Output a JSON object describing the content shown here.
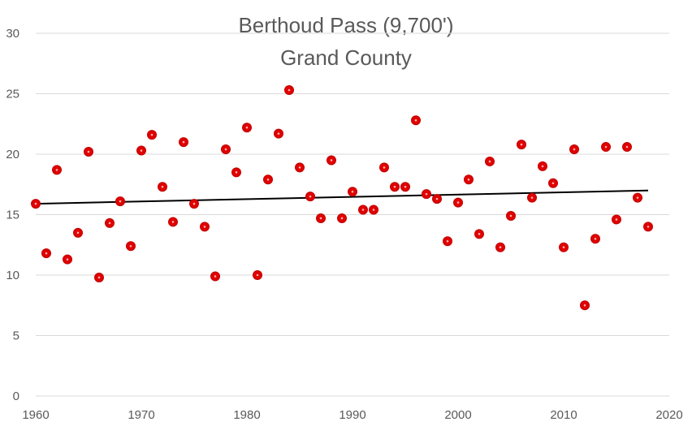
{
  "chart_data": {
    "type": "scatter",
    "title": "Berthoud Pass (9,700')",
    "subtitle": "Grand County",
    "xlabel": "",
    "ylabel": "",
    "xlim": [
      1960,
      2020
    ],
    "ylim": [
      0,
      30
    ],
    "x_ticks": [
      "1960",
      "1970",
      "1980",
      "1990",
      "2000",
      "2010",
      "2020"
    ],
    "y_ticks": [
      "0",
      "5",
      "10",
      "15",
      "20",
      "25",
      "30"
    ],
    "grid": "horizontal",
    "legend": "none",
    "colors": {
      "marker": "#e00000",
      "trendline": "#000000",
      "grid": "#d9d9d9"
    },
    "series": [
      {
        "points": [
          [
            1960,
            15.9
          ],
          [
            1961,
            11.8
          ],
          [
            1962,
            18.7
          ],
          [
            1963,
            11.3
          ],
          [
            1964,
            13.5
          ],
          [
            1965,
            20.2
          ],
          [
            1966,
            9.8
          ],
          [
            1967,
            14.3
          ],
          [
            1968,
            16.1
          ],
          [
            1969,
            12.4
          ],
          [
            1970,
            20.3
          ],
          [
            1971,
            21.6
          ],
          [
            1972,
            17.3
          ],
          [
            1973,
            14.4
          ],
          [
            1974,
            21.0
          ],
          [
            1975,
            15.9
          ],
          [
            1976,
            14.0
          ],
          [
            1977,
            9.9
          ],
          [
            1978,
            20.4
          ],
          [
            1979,
            18.5
          ],
          [
            1980,
            22.2
          ],
          [
            1981,
            10.0
          ],
          [
            1982,
            17.9
          ],
          [
            1983,
            21.7
          ],
          [
            1984,
            25.3
          ],
          [
            1985,
            18.9
          ],
          [
            1986,
            16.5
          ],
          [
            1987,
            14.7
          ],
          [
            1988,
            19.5
          ],
          [
            1989,
            14.7
          ],
          [
            1990,
            16.9
          ],
          [
            1991,
            15.4
          ],
          [
            1992,
            15.4
          ],
          [
            1993,
            18.9
          ],
          [
            1994,
            17.3
          ],
          [
            1995,
            17.3
          ],
          [
            1996,
            22.8
          ],
          [
            1997,
            16.7
          ],
          [
            1998,
            16.3
          ],
          [
            1999,
            12.8
          ],
          [
            2000,
            16.0
          ],
          [
            2001,
            17.9
          ],
          [
            2002,
            13.4
          ],
          [
            2003,
            19.4
          ],
          [
            2004,
            12.3
          ],
          [
            2005,
            14.9
          ],
          [
            2006,
            20.8
          ],
          [
            2007,
            16.4
          ],
          [
            2008,
            19.0
          ],
          [
            2009,
            17.6
          ],
          [
            2010,
            12.3
          ],
          [
            2011,
            20.4
          ],
          [
            2012,
            7.5
          ],
          [
            2013,
            13.0
          ],
          [
            2014,
            20.6
          ],
          [
            2015,
            14.6
          ],
          [
            2016,
            20.6
          ],
          [
            2017,
            16.4
          ],
          [
            2018,
            14.0
          ]
        ]
      }
    ],
    "trendline": {
      "type": "linear",
      "start": [
        1960,
        15.9
      ],
      "end": [
        2018,
        17.0
      ]
    }
  }
}
